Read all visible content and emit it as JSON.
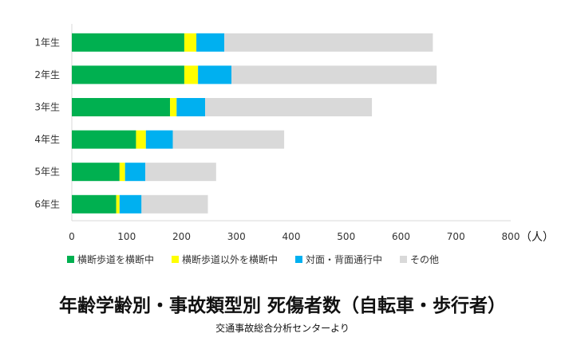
{
  "chart_data": {
    "type": "bar",
    "orientation": "horizontal",
    "stacked": true,
    "title": "年齢学齢別・事故類型別 死傷者数（自転車・歩行者）",
    "source": "交通事故総合分析センターより",
    "categories": [
      "1年生",
      "2年生",
      "3年生",
      "4年生",
      "5年生",
      "6年生"
    ],
    "xunit": "（人）",
    "xlim": [
      0,
      800
    ],
    "xticks": [
      0,
      100,
      200,
      300,
      400,
      500,
      600,
      700,
      800
    ],
    "grid": false,
    "legend_position": "bottom",
    "series": [
      {
        "name": "横断歩道を横断中",
        "color": "#00b050",
        "values": [
          205,
          205,
          179,
          117,
          87,
          81
        ]
      },
      {
        "name": "横断歩道以外を横断中",
        "color": "#ffff00",
        "values": [
          22,
          25,
          12,
          18,
          10,
          6
        ]
      },
      {
        "name": "対面・背面通行中",
        "color": "#00b0f0",
        "values": [
          51,
          61,
          52,
          49,
          37,
          40
        ]
      },
      {
        "name": "その他",
        "color": "#d9d9d9",
        "values": [
          380,
          374,
          304,
          203,
          129,
          121
        ]
      }
    ]
  }
}
